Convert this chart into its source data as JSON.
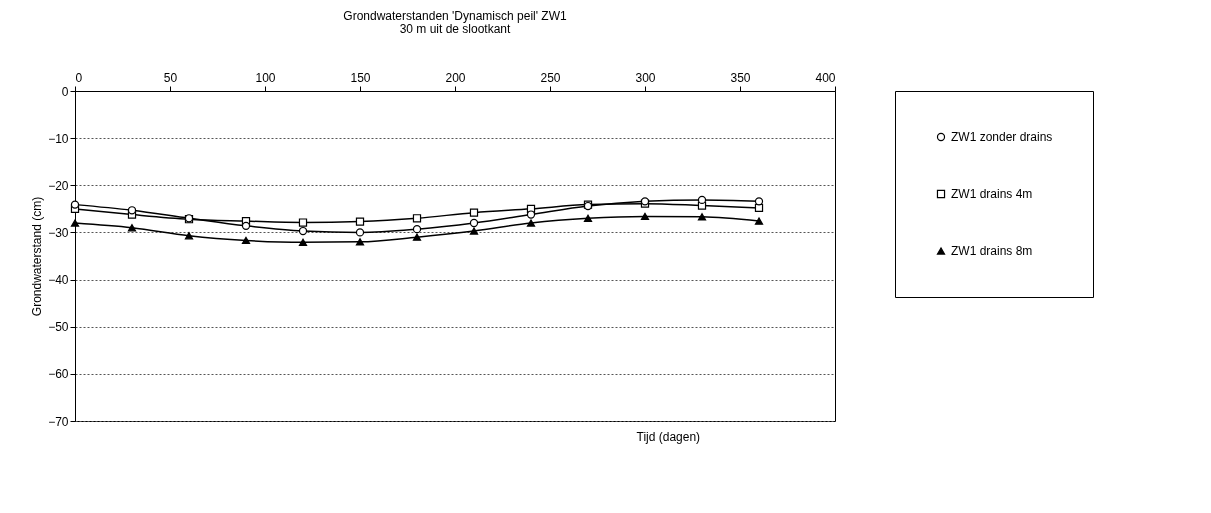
{
  "chart_data": {
    "type": "line",
    "title": "Grondwaterstanden 'Dynamisch peil' ZW1",
    "subtitle": "30 m uit de slootkant",
    "xlabel": "Tijd (dagen)",
    "ylabel": "Grondwaterstand (cm)",
    "x": [
      0,
      30,
      60,
      90,
      120,
      150,
      180,
      210,
      240,
      270,
      300,
      330,
      360
    ],
    "series": [
      {
        "name": "ZW1 zonder drains",
        "color": "#000000",
        "marker": "circle",
        "values": [
          -24.1,
          -25.3,
          -27.0,
          -28.6,
          -29.7,
          -30.0,
          -29.3,
          -28.0,
          -26.2,
          -24.4,
          -23.4,
          -23.1,
          -23.4
        ]
      },
      {
        "name": "ZW1 drains 4m",
        "color": "#000000",
        "marker": "square",
        "values": [
          -25.0,
          -26.2,
          -27.2,
          -27.6,
          -27.9,
          -27.7,
          -27.0,
          -25.8,
          -25.0,
          -24.1,
          -23.9,
          -24.3,
          -24.8
        ]
      },
      {
        "name": "ZW1 drains 8m",
        "color": "#000000",
        "marker": "triangle",
        "values": [
          -28.0,
          -29.0,
          -30.7,
          -31.7,
          -32.1,
          -32.0,
          -31.0,
          -29.7,
          -28.0,
          -27.0,
          -26.6,
          -26.7,
          -27.6
        ]
      }
    ],
    "xlim": [
      0,
      400
    ],
    "xticks": [
      0,
      50,
      100,
      150,
      200,
      250,
      300,
      350,
      400
    ],
    "ylim": [
      -70,
      0
    ],
    "yticks": [
      0,
      -10,
      -20,
      -30,
      -40,
      -50,
      -60,
      -70
    ],
    "grid": "y",
    "legend": "right",
    "line_style": "solid"
  }
}
